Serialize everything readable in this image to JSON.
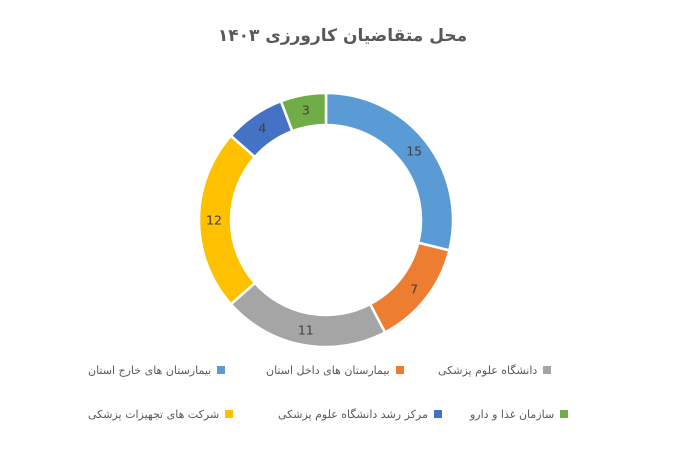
{
  "title": "محل متقاضیان کارورزی ۱۴۰۳",
  "chart_data": {
    "type": "pie",
    "subtype": "donut",
    "title": "محل متقاضیان کارورزی ۱۴۰۳",
    "total": 52,
    "start_angle_deg": 0,
    "direction": "clockwise",
    "legend_position": "bottom",
    "legend_rows": [
      [
        0,
        1,
        2
      ],
      [
        3,
        4,
        5
      ]
    ],
    "series": [
      {
        "label": "بیمارستان های خارج استان",
        "value": 15,
        "color": "#5B9BD5"
      },
      {
        "label": "بیمارستان های داخل استان",
        "value": 7,
        "color": "#ED7D31"
      },
      {
        "label": "دانشگاه علوم پزشکی",
        "value": 11,
        "color": "#A5A5A5"
      },
      {
        "label": "شرکت های تجهیزات پزشکی",
        "value": 12,
        "color": "#FFC000"
      },
      {
        "label": "مرکز رشد دانشگاه علوم پزشکی",
        "value": 4,
        "color": "#4472C4"
      },
      {
        "label": "سازمان غذا و دارو",
        "value": 3,
        "color": "#70AD47"
      }
    ],
    "data_labels": [
      15,
      7,
      11,
      12,
      4,
      3
    ],
    "colors": {
      "title_text": "#595959",
      "data_label_text": "#404040",
      "legend_text": "#595959",
      "slice_border": "#FFFFFF"
    }
  }
}
